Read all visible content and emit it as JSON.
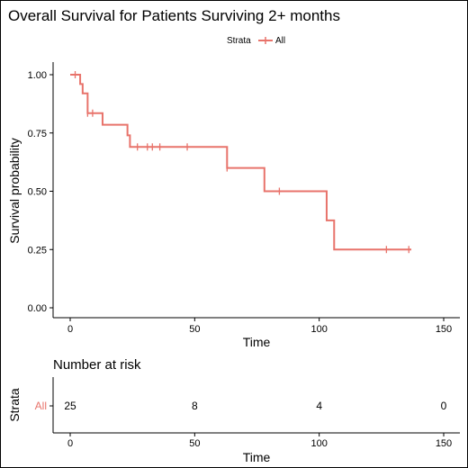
{
  "chart_data": [
    {
      "type": "line",
      "subtype": "kaplan-meier step",
      "title": "Overall Survival for Patients Surviving 2+ months",
      "legend": {
        "title": "Strata",
        "entries": [
          "All"
        ],
        "placement": "top-center"
      },
      "xlabel": "Time",
      "ylabel": "Survival probability",
      "xlim": [
        0,
        150
      ],
      "ylim": [
        0,
        1
      ],
      "xticks": [
        "0",
        "50",
        "100",
        "150"
      ],
      "yticks": [
        "0.00",
        "0.25",
        "0.50",
        "0.75",
        "1.00"
      ],
      "grid": false,
      "color": "#E8736B",
      "series": [
        {
          "name": "All",
          "steps": [
            [
              0,
              1.0
            ],
            [
              4,
              0.96
            ],
            [
              5,
              0.92
            ],
            [
              7,
              0.835
            ],
            [
              13,
              0.785
            ],
            [
              23,
              0.74
            ],
            [
              24,
              0.69
            ],
            [
              63,
              0.6
            ],
            [
              78,
              0.5
            ],
            [
              103,
              0.375
            ],
            [
              106,
              0.25
            ],
            [
              137,
              0.25
            ]
          ],
          "censored": [
            [
              2,
              1.0
            ],
            [
              7,
              0.835
            ],
            [
              9,
              0.835
            ],
            [
              27,
              0.69
            ],
            [
              31,
              0.69
            ],
            [
              33,
              0.69
            ],
            [
              36,
              0.69
            ],
            [
              47,
              0.69
            ],
            [
              63,
              0.6
            ],
            [
              84,
              0.5
            ],
            [
              127,
              0.25
            ],
            [
              136,
              0.25
            ]
          ]
        }
      ]
    },
    {
      "type": "table",
      "title": "Number at risk",
      "xlabel": "Time",
      "ylabel": "Strata",
      "xlim": [
        0,
        150
      ],
      "xticks": [
        "0",
        "50",
        "100",
        "150"
      ],
      "rows": [
        {
          "stratum": "All",
          "times": [
            0,
            50,
            100,
            150
          ],
          "counts": [
            "25",
            "8",
            "4",
            "0"
          ]
        }
      ]
    }
  ]
}
